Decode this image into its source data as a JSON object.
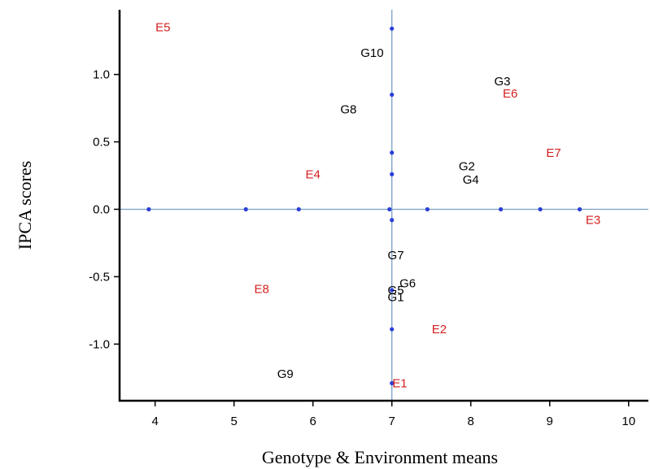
{
  "chart_data": {
    "type": "scatter",
    "title": "",
    "xlabel": "Genotype & Environment means",
    "ylabel": "IPCA scores",
    "xlim": [
      3.55,
      10.25
    ],
    "ylim": [
      -1.42,
      1.48
    ],
    "x_ticks": [
      4,
      5,
      6,
      7,
      8,
      9,
      10
    ],
    "y_ticks": [
      -1.0,
      -0.5,
      0.0,
      0.5,
      1.0
    ],
    "x_tick_labels": [
      "4",
      "5",
      "6",
      "7",
      "8",
      "9",
      "10"
    ],
    "y_tick_labels": [
      "-1.0",
      "-0.5",
      "0.0",
      "0.5",
      "1.0"
    ],
    "grid": false,
    "reference_lines": {
      "x": 7.0,
      "y": 0.0,
      "color": "#7a9ec8"
    },
    "marker_color": "#2a3fd8",
    "series": [
      {
        "color": "#000000",
        "points": [
          {
            "label": "G1",
            "x": 7.05,
            "y": -0.65
          },
          {
            "label": "G2",
            "x": 7.95,
            "y": 0.32
          },
          {
            "label": "G3",
            "x": 8.4,
            "y": 0.95
          },
          {
            "label": "G4",
            "x": 8.0,
            "y": 0.22
          },
          {
            "label": "G5",
            "x": 7.05,
            "y": -0.6
          },
          {
            "label": "G6",
            "x": 7.2,
            "y": -0.55
          },
          {
            "label": "G7",
            "x": 7.05,
            "y": -0.34
          },
          {
            "label": "G8",
            "x": 6.45,
            "y": 0.74
          },
          {
            "label": "G9",
            "x": 5.65,
            "y": -1.22
          },
          {
            "label": "G10",
            "x": 6.75,
            "y": 1.16
          }
        ]
      },
      {
        "color": "#d42020",
        "points": [
          {
            "label": "E1",
            "x": 7.1,
            "y": -1.29
          },
          {
            "label": "E2",
            "x": 7.6,
            "y": -0.89
          },
          {
            "label": "E3",
            "x": 9.55,
            "y": -0.08
          },
          {
            "label": "E4",
            "x": 6.0,
            "y": 0.26
          },
          {
            "label": "E5",
            "x": 4.1,
            "y": 1.35
          },
          {
            "label": "E6",
            "x": 8.5,
            "y": 0.86
          },
          {
            "label": "E7",
            "x": 9.05,
            "y": 0.42
          },
          {
            "label": "E8",
            "x": 5.35,
            "y": -0.59
          }
        ]
      }
    ],
    "markers": [
      {
        "x": 3.92,
        "y": 0.0
      },
      {
        "x": 5.15,
        "y": 0.0
      },
      {
        "x": 5.82,
        "y": 0.0
      },
      {
        "x": 6.97,
        "y": 0.0
      },
      {
        "x": 7.45,
        "y": 0.0
      },
      {
        "x": 8.38,
        "y": 0.0
      },
      {
        "x": 8.88,
        "y": 0.0
      },
      {
        "x": 9.38,
        "y": 0.0
      },
      {
        "x": 7.0,
        "y": 1.34
      },
      {
        "x": 7.0,
        "y": 0.85
      },
      {
        "x": 7.0,
        "y": 0.42
      },
      {
        "x": 7.0,
        "y": 0.26
      },
      {
        "x": 7.0,
        "y": -0.08
      },
      {
        "x": 7.0,
        "y": -0.6
      },
      {
        "x": 7.0,
        "y": -0.89
      },
      {
        "x": 7.0,
        "y": -1.29
      }
    ]
  }
}
